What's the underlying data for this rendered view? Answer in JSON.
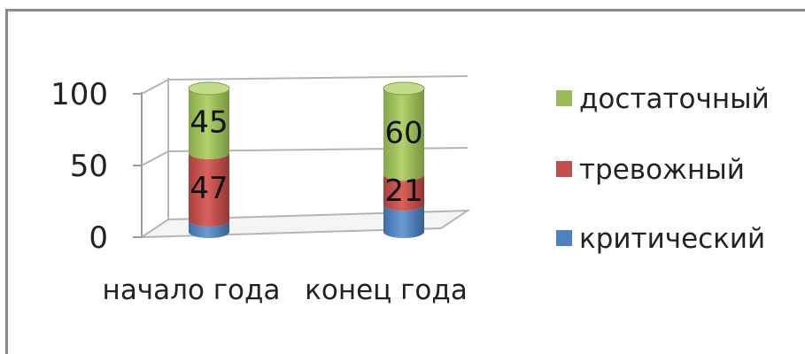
{
  "chart_data": {
    "type": "bar",
    "stacked": true,
    "style": "3d-cylinder",
    "categories": [
      "начало года",
      "конец года"
    ],
    "series": [
      {
        "name": "критический",
        "values": [
          8,
          19
        ],
        "color": "#4f81bd"
      },
      {
        "name": "тревожный",
        "values": [
          47,
          21
        ],
        "color": "#c0504d"
      },
      {
        "name": "достаточный",
        "values": [
          45,
          60
        ],
        "color": "#9bbb59"
      }
    ],
    "y_ticks": [
      "0",
      "50",
      "100"
    ],
    "ylim": [
      0,
      100
    ],
    "grid": true,
    "legend_position": "right",
    "data_labels": {
      "начало года": {
        "тревожный": "47",
        "достаточный": "45"
      },
      "конец года": {
        "тревожный": "21",
        "достаточный": "60"
      }
    }
  }
}
